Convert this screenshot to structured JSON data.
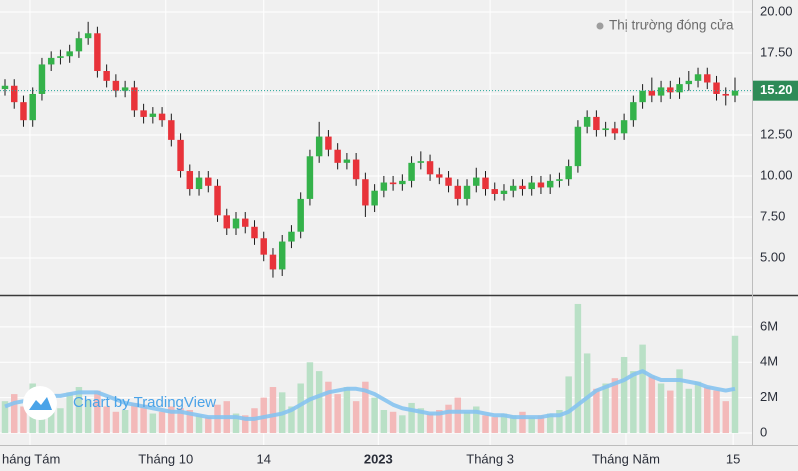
{
  "chart_data": {
    "type": "candlestick",
    "legend": "Thị trường đóng cửa",
    "watermark": "Chart by TradingView",
    "up_color": "#34b24a",
    "down_color": "#e8333a",
    "volume_up_color": "#b9e0c6",
    "volume_down_color": "#f3b9b9",
    "ma_color": "#86c3ef",
    "last_price": {
      "value": 15.2,
      "label": "15.20"
    },
    "xlim": [
      -0.54,
      80.84
    ],
    "xticks": [
      {
        "value": 2.7,
        "label": "háng Tám"
      },
      {
        "value": 17.4,
        "label": "Tháng 10"
      },
      {
        "value": 28.0,
        "label": "14"
      },
      {
        "value": 40.4,
        "label": "2023"
      },
      {
        "value": 52.5,
        "label": "Tháng 3"
      },
      {
        "value": 67.2,
        "label": "Tháng Năm"
      },
      {
        "value": 78.8,
        "label": "15"
      }
    ],
    "ylim": [
      2.74,
      20.73
    ],
    "yticks": [
      {
        "value": 5,
        "label": "5.00"
      },
      {
        "value": 7.5,
        "label": "7.50"
      },
      {
        "value": 10,
        "label": "10.00"
      },
      {
        "value": 12.5,
        "label": "12.50"
      },
      {
        "value": 15,
        "label": "15.00"
      },
      {
        "value": 17.5,
        "label": "17.50"
      },
      {
        "value": 20,
        "label": "20.00"
      }
    ],
    "volume_lim": [
      -0.68,
      7.75
    ],
    "volume_ticks": [
      0,
      {
        "value": 2,
        "label": "2M"
      },
      {
        "value": 4,
        "label": "4M"
      },
      {
        "value": 6,
        "label": "6M"
      }
    ],
    "open": [
      15.3,
      15.5,
      14.5,
      13.4,
      15.0,
      16.8,
      17.2,
      17.3,
      17.6,
      18.4,
      18.7,
      16.4,
      15.8,
      15.2,
      15.4,
      14.0,
      13.6,
      13.8,
      13.4,
      12.2,
      10.3,
      9.2,
      9.9,
      9.4,
      7.6,
      6.8,
      7.4,
      6.9,
      6.2,
      5.2,
      4.3,
      6.0,
      6.6,
      8.6,
      11.2,
      12.4,
      11.6,
      10.8,
      11.0,
      9.8,
      8.2,
      9.1,
      9.6,
      9.5,
      9.7,
      10.8,
      10.9,
      10.1,
      9.9,
      9.4,
      8.6,
      9.4,
      9.9,
      9.2,
      8.9,
      9.1,
      9.4,
      9.2,
      9.6,
      9.3,
      9.7,
      9.8,
      10.6,
      13.0,
      13.6,
      12.8,
      12.9,
      12.6,
      13.4,
      14.5,
      15.2,
      14.9,
      15.4,
      15.1,
      15.6,
      15.8,
      16.2,
      15.7,
      15.0,
      14.9
    ],
    "high": [
      15.9,
      15.9,
      14.9,
      15.4,
      17.2,
      17.6,
      17.7,
      18.0,
      18.8,
      19.4,
      19.1,
      16.8,
      16.2,
      15.8,
      15.8,
      14.4,
      14.2,
      14.2,
      13.8,
      12.6,
      10.7,
      10.3,
      10.3,
      9.8,
      8.0,
      7.8,
      7.8,
      7.3,
      6.6,
      5.6,
      6.4,
      7.0,
      9.0,
      11.6,
      13.3,
      12.8,
      12.0,
      11.4,
      11.4,
      10.2,
      9.5,
      10.0,
      10.0,
      10.1,
      11.2,
      11.5,
      11.3,
      10.5,
      10.3,
      9.8,
      9.8,
      10.5,
      10.3,
      9.6,
      9.5,
      9.8,
      9.8,
      10.0,
      10.0,
      10.1,
      10.2,
      11.0,
      13.4,
      14.0,
      14.0,
      13.3,
      13.3,
      13.8,
      14.9,
      15.6,
      16.0,
      15.8,
      15.8,
      16.0,
      16.4,
      16.6,
      16.6,
      16.1,
      15.4,
      16.0
    ],
    "low": [
      14.9,
      14.1,
      13.0,
      13.0,
      14.6,
      16.4,
      16.8,
      16.9,
      17.2,
      18.0,
      16.0,
      15.4,
      14.8,
      14.8,
      13.6,
      13.2,
      13.2,
      13.0,
      11.8,
      9.9,
      8.8,
      8.8,
      9.0,
      7.2,
      6.4,
      6.4,
      6.5,
      5.8,
      4.8,
      3.8,
      3.9,
      5.6,
      6.2,
      8.2,
      10.8,
      11.2,
      10.4,
      10.4,
      9.4,
      7.5,
      7.8,
      8.7,
      9.1,
      9.1,
      9.3,
      10.4,
      9.7,
      9.5,
      9.0,
      8.2,
      8.2,
      9.0,
      8.8,
      8.5,
      8.5,
      8.7,
      8.8,
      8.8,
      8.9,
      8.9,
      9.3,
      9.4,
      10.2,
      12.6,
      12.4,
      12.4,
      12.2,
      12.2,
      13.0,
      14.1,
      14.5,
      14.5,
      14.7,
      14.7,
      15.2,
      15.4,
      15.3,
      14.6,
      14.3,
      14.5
    ],
    "close": [
      15.5,
      14.5,
      13.4,
      15.0,
      16.8,
      17.2,
      17.3,
      17.6,
      18.4,
      18.7,
      16.4,
      15.8,
      15.2,
      15.4,
      14.0,
      13.6,
      13.8,
      13.4,
      12.2,
      10.3,
      9.2,
      9.9,
      9.4,
      7.6,
      6.8,
      7.4,
      6.9,
      6.2,
      5.2,
      4.3,
      6.0,
      6.6,
      8.6,
      11.2,
      12.4,
      11.6,
      10.8,
      11.0,
      9.8,
      8.2,
      9.1,
      9.6,
      9.5,
      9.7,
      10.8,
      10.9,
      10.1,
      9.9,
      9.4,
      8.6,
      9.4,
      9.9,
      9.2,
      8.9,
      9.1,
      9.4,
      9.2,
      9.6,
      9.3,
      9.7,
      9.8,
      10.6,
      13.0,
      13.6,
      12.8,
      12.9,
      12.6,
      13.4,
      14.5,
      15.2,
      14.9,
      15.4,
      15.1,
      15.6,
      15.8,
      16.2,
      15.7,
      15.0,
      14.9,
      15.2
    ],
    "volume": [
      1.8,
      2.2,
      1.5,
      2.8,
      2.0,
      1.6,
      1.4,
      2.3,
      2.6,
      1.9,
      2.4,
      1.5,
      1.2,
      1.3,
      1.7,
      1.6,
      1.1,
      1.2,
      1.5,
      1.4,
      1.3,
      1.0,
      0.9,
      1.6,
      1.8,
      1.1,
      1.0,
      1.4,
      2.0,
      2.6,
      2.3,
      1.5,
      2.8,
      4.0,
      3.5,
      2.9,
      2.2,
      2.6,
      1.8,
      2.9,
      2.0,
      1.3,
      1.2,
      1.0,
      1.7,
      1.4,
      1.1,
      1.3,
      1.6,
      2.0,
      1.2,
      1.5,
      1.0,
      0.9,
      1.1,
      1.0,
      1.2,
      0.9,
      1.0,
      1.1,
      1.3,
      3.2,
      7.3,
      4.5,
      2.5,
      2.8,
      3.1,
      4.3,
      3.5,
      5.0,
      3.2,
      2.8,
      2.4,
      3.6,
      2.5,
      2.9,
      2.6,
      2.4,
      1.8,
      5.5
    ],
    "volume_ma": [
      1.5,
      1.7,
      1.8,
      1.9,
      2.0,
      2.1,
      2.1,
      2.2,
      2.3,
      2.3,
      2.3,
      2.1,
      1.9,
      1.7,
      1.6,
      1.5,
      1.4,
      1.3,
      1.2,
      1.2,
      1.1,
      1.0,
      0.9,
      0.9,
      0.9,
      0.9,
      0.8,
      0.8,
      0.9,
      1.0,
      1.1,
      1.3,
      1.6,
      1.9,
      2.1,
      2.3,
      2.4,
      2.5,
      2.5,
      2.4,
      2.2,
      1.9,
      1.6,
      1.4,
      1.3,
      1.2,
      1.1,
      1.1,
      1.2,
      1.2,
      1.2,
      1.2,
      1.1,
      1.0,
      1.0,
      0.9,
      0.9,
      0.9,
      0.9,
      1.0,
      1.0,
      1.2,
      1.6,
      2.0,
      2.4,
      2.6,
      2.8,
      3.0,
      3.3,
      3.5,
      3.2,
      3.0,
      3.0,
      3.0,
      2.9,
      2.8,
      2.6,
      2.5,
      2.4,
      2.5
    ]
  }
}
